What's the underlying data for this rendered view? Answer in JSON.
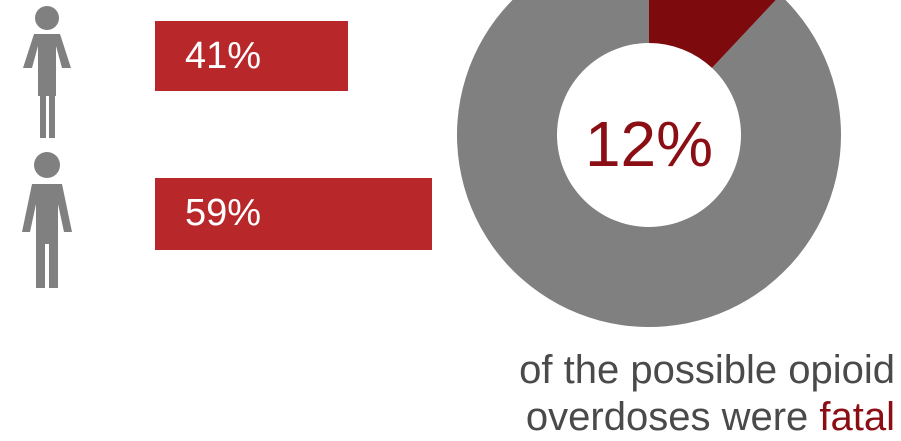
{
  "colors": {
    "bar": "#b8282b",
    "icon": "#808080",
    "donut_rest": "#808080",
    "donut_highlight": "#7d0a0c",
    "center_text": "#8a0e13",
    "caption_text": "#4a4a4a"
  },
  "icons": [
    "female-figure-icon",
    "male-figure-icon"
  ],
  "chart_data": [
    {
      "type": "bar",
      "orientation": "horizontal",
      "categories": [
        "female",
        "male"
      ],
      "values": [
        41,
        59
      ],
      "value_labels": [
        "41%",
        "59%"
      ],
      "xlim": [
        0,
        100
      ]
    },
    {
      "type": "pie",
      "style": "donut",
      "values": [
        12,
        88
      ],
      "center_label": "12%"
    }
  ],
  "caption": {
    "line1": "of the possible opioid",
    "line2_prefix": "overdoses were ",
    "line2_highlight": "fatal"
  }
}
